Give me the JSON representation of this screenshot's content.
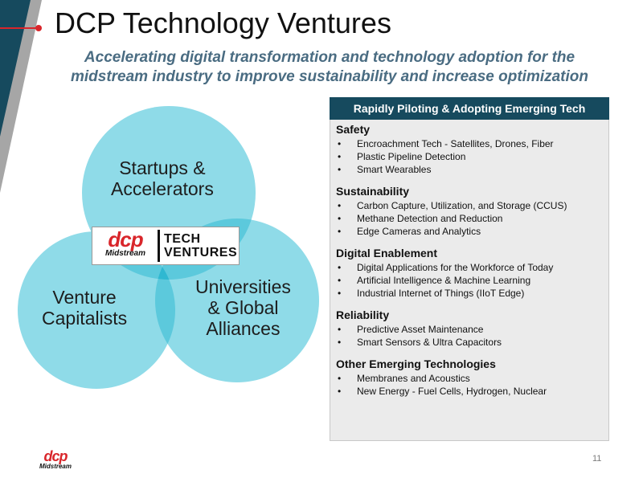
{
  "colors": {
    "sidebar_dark": "#164a5e",
    "sidebar_gray": "#a6a6a6",
    "accent_red": "#d9262b",
    "subtitle_blue": "#4a6c82",
    "circle_fill": "#8fdbe8",
    "circle_overlap": "#5cc9dc",
    "center_overlap": "#2fb8d1",
    "panel_header": "#164a5e",
    "panel_bg": "#ebebeb"
  },
  "slide": {
    "title": "DCP Technology Ventures",
    "subtitle_line1": "Accelerating digital transformation and technology adoption for the",
    "subtitle_line2": "midstream industry to improve sustainability and increase optimization",
    "page_number": "11"
  },
  "venn": {
    "top": {
      "line1": "Startups &",
      "line2": "Accelerators"
    },
    "left": {
      "line1": "Venture",
      "line2": "Capitalists"
    },
    "right": {
      "line1": "Universities",
      "line2": "& Global",
      "line3": "Alliances"
    }
  },
  "logo": {
    "dcp": "dcp",
    "midstream": "Midstream",
    "tech": "TECH",
    "ventures": "VENTURES"
  },
  "panel": {
    "header": "Rapidly Piloting & Adopting Emerging Tech",
    "bullet_char": "•",
    "sections": [
      {
        "title": "Safety",
        "items": [
          "Encroachment Tech - Satellites, Drones, Fiber",
          "Plastic Pipeline Detection",
          "Smart Wearables"
        ]
      },
      {
        "title": "Sustainability",
        "items": [
          "Carbon Capture, Utilization, and Storage (CCUS)",
          "Methane Detection and Reduction",
          "Edge Cameras and Analytics"
        ]
      },
      {
        "title": "Digital Enablement",
        "items": [
          "Digital Applications for the Workforce of Today",
          "Artificial Intelligence & Machine Learning",
          "Industrial Internet of Things (IIoT Edge)"
        ]
      },
      {
        "title": "Reliability",
        "items": [
          "Predictive Asset Maintenance",
          "Smart Sensors & Ultra Capacitors"
        ]
      },
      {
        "title": "Other Emerging Technologies",
        "items": [
          "Membranes and Acoustics",
          "New Energy - Fuel Cells, Hydrogen, Nuclear"
        ]
      }
    ]
  }
}
